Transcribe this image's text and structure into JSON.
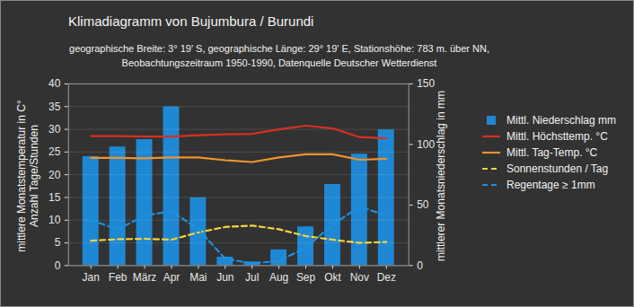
{
  "chart_data": {
    "type": "bar",
    "title": "Klimadiagramm von Bujumbura / Burundi",
    "subtitle": [
      "geographische Breite: 3° 19' S, geographische Länge: 29° 19' E, Stationshöhe: 783 m. über NN,",
      "Beobachtungszeitraum 1950-1990, Datenquelle Deutscher Wetterdienst"
    ],
    "categories": [
      "Jan",
      "Feb",
      "März",
      "Apr",
      "Mai",
      "Jun",
      "Jul",
      "Aug",
      "Sep",
      "Okt",
      "Nov",
      "Dez"
    ],
    "ylabel": [
      "mittlere Monatstemperatur in C°",
      "Anzahl Tage/Stunden"
    ],
    "y2label": "mittlerer Monatsniederschlag in mm",
    "ylim": [
      0,
      40
    ],
    "yticks": [
      0,
      5,
      10,
      15,
      20,
      25,
      30,
      35,
      40
    ],
    "y2lim": [
      0,
      150
    ],
    "y2ticks": [
      0,
      50,
      100,
      150
    ],
    "grid": true,
    "legend": "right",
    "series": [
      {
        "name": "Mittl. Niederschlag mm",
        "type": "bar",
        "axis": "y2",
        "color": "#1e88d4",
        "values": [
          90,
          98,
          104,
          131,
          56,
          7,
          3,
          13,
          32,
          67,
          92,
          112
        ]
      },
      {
        "name": "Mittl. Höchsttemp. °C",
        "type": "line",
        "color": "#d7301f",
        "line_style": "solid",
        "values": [
          28.5,
          28.5,
          28.4,
          28.4,
          28.7,
          28.9,
          29.0,
          30.0,
          30.8,
          30.2,
          28.3,
          28.0
        ]
      },
      {
        "name": "Mittl. Tag-Temp. °C",
        "type": "line",
        "color": "#f0922a",
        "line_style": "solid",
        "values": [
          23.7,
          23.7,
          23.6,
          23.8,
          23.8,
          23.2,
          22.8,
          23.8,
          24.5,
          24.5,
          23.3,
          23.5
        ]
      },
      {
        "name": "Sonnenstunden / Tag",
        "type": "line",
        "color": "#f5d33c",
        "line_style": "dashed",
        "values": [
          5.5,
          5.8,
          5.9,
          5.7,
          7.3,
          8.5,
          8.8,
          8.0,
          6.5,
          5.7,
          5.0,
          5.2
        ]
      },
      {
        "name": "Regentage ≥ 1mm",
        "type": "line",
        "color": "#1e90e0",
        "line_style": "dashed",
        "values": [
          10,
          8,
          11,
          12,
          8,
          1.5,
          0.5,
          1,
          4,
          9,
          13,
          11
        ]
      }
    ]
  }
}
